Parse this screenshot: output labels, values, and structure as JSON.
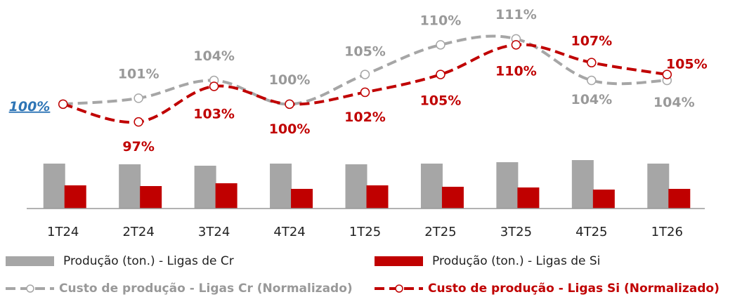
{
  "chart_data": {
    "type": "bar-line",
    "categories": [
      "1T24",
      "2T24",
      "3T24",
      "4T24",
      "1T25",
      "2T25",
      "3T25",
      "4T25",
      "1T26"
    ],
    "annotation": "100%",
    "ylim": [
      94,
      113
    ],
    "y2lim": [
      0,
      100
    ],
    "series": [
      {
        "name": "Produção (ton.) - Ligas de Cr",
        "type": "bar",
        "axis": "y2",
        "color": "#a6a6a6",
        "values": [
          64,
          63,
          61,
          64,
          63,
          64,
          66,
          69,
          64
        ]
      },
      {
        "name": "Produção (ton.) - Ligas de Si",
        "type": "bar",
        "axis": "y2",
        "color": "#c00000",
        "values": [
          33,
          32,
          36,
          28,
          33,
          31,
          30,
          27,
          28
        ]
      },
      {
        "name": "Custo de produção - Ligas Cr (Normalizado)",
        "type": "line",
        "color": "#a6a6a6",
        "values": [
          100,
          101,
          104,
          100,
          105,
          110,
          111,
          104,
          104
        ],
        "value_labels": [
          null,
          "101%",
          "104%",
          "100%",
          "105%",
          "110%",
          "111%",
          "104%",
          "104%"
        ]
      },
      {
        "name": "Custo de produção - Ligas Si (Normalizado)",
        "type": "line",
        "color": "#c00000",
        "values": [
          100,
          97,
          103,
          100,
          102,
          105,
          110,
          107,
          105
        ],
        "value_labels": [
          null,
          "97%",
          "103%",
          "100%",
          "102%",
          "105%",
          "110%",
          "107%",
          "105%"
        ]
      }
    ]
  }
}
